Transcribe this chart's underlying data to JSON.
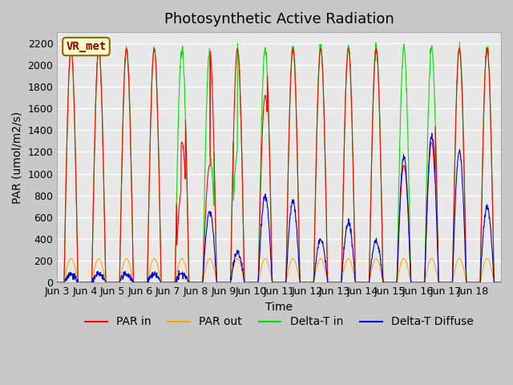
{
  "title": "Photosynthetic Active Radiation",
  "ylabel": "PAR (umol/m2/s)",
  "xlabel": "Time",
  "ylim": [
    0,
    2300
  ],
  "yticks": [
    0,
    200,
    400,
    600,
    800,
    1000,
    1200,
    1400,
    1600,
    1800,
    2000,
    2200
  ],
  "xtick_labels": [
    "Jun 3",
    "Jun 4",
    "Jun 5",
    "Jun 6",
    "Jun 7",
    "Jun 8",
    "Jun 9",
    "Jun 10",
    "Jun 11",
    "Jun 12",
    "Jun 13",
    "Jun 14",
    "Jun 15",
    "Jun 16",
    "Jun 17",
    "Jun 18"
  ],
  "legend_labels": [
    "PAR in",
    "PAR out",
    "Delta-T in",
    "Delta-T Diffuse"
  ],
  "legend_colors": [
    "#ff0000",
    "#ffa500",
    "#00cc00",
    "#0000cc"
  ],
  "annotation_text": "VR_met",
  "annotation_bg": "#ffffcc",
  "annotation_border": "#8b6500",
  "plot_bg_color": "#e8e8e8",
  "title_fontsize": 13,
  "axis_label_fontsize": 10,
  "tick_fontsize": 9,
  "n_days": 16,
  "points_per_day": 96
}
